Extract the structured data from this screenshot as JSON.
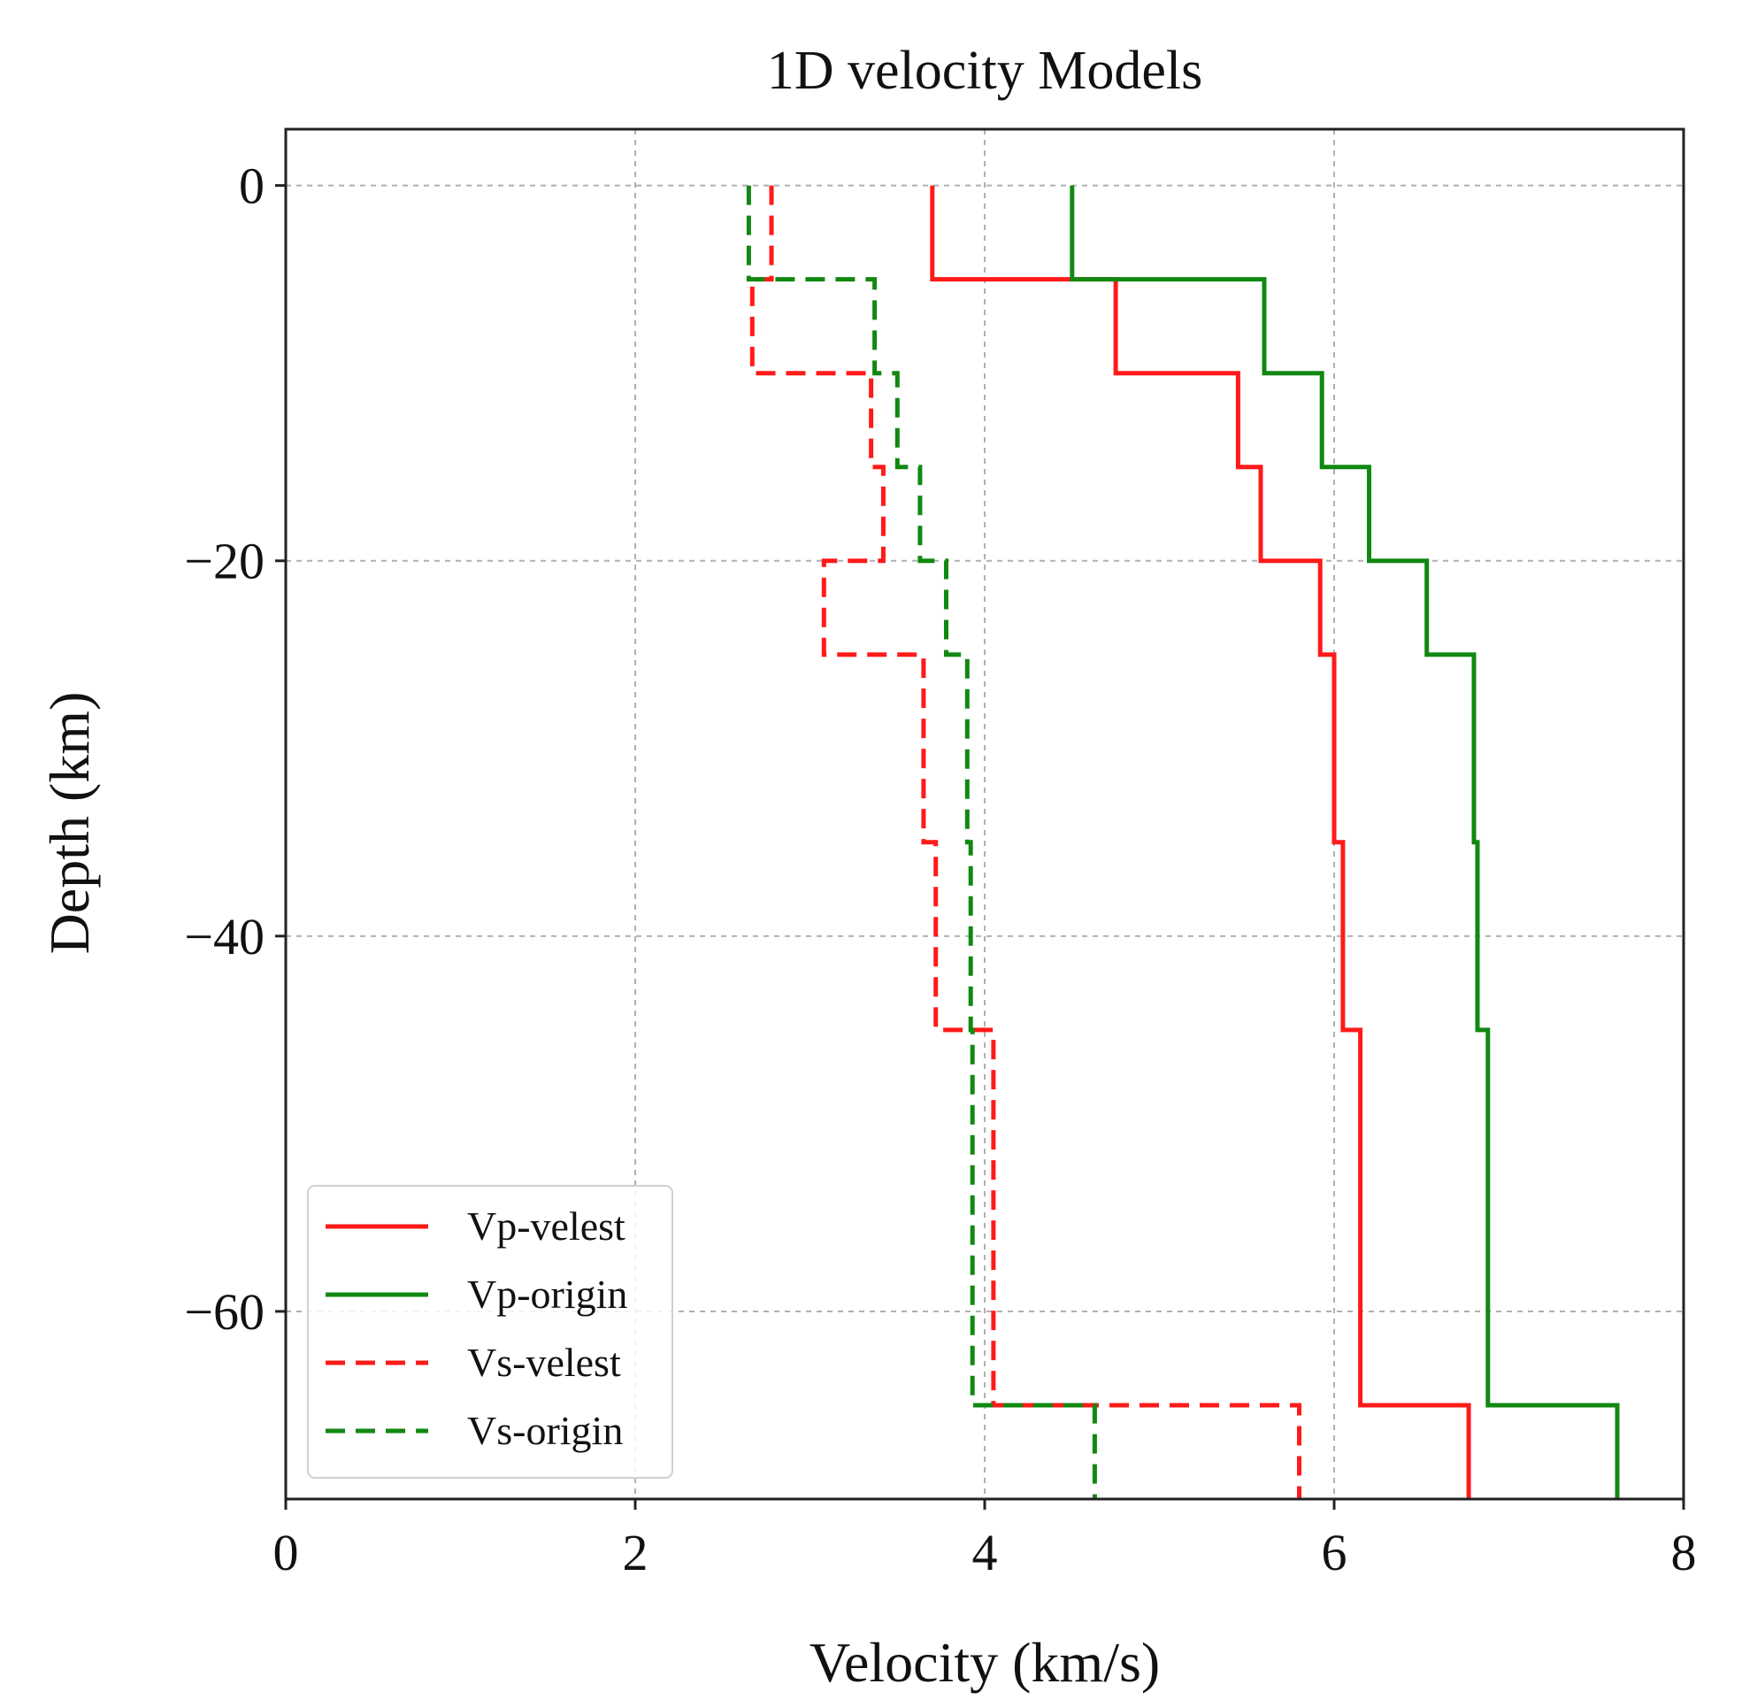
{
  "chart_data": {
    "type": "line",
    "title": "1D velocity Models",
    "xlabel": "Velocity (km/s)",
    "ylabel": "Depth (km)",
    "xlim": [
      0,
      8
    ],
    "ylim": [
      -70,
      3
    ],
    "xticks": [
      0,
      2,
      4,
      6,
      8
    ],
    "xtick_labels": [
      "0",
      "2",
      "4",
      "6",
      "8"
    ],
    "yticks": [
      0,
      -20,
      -40,
      -60
    ],
    "ytick_labels": [
      "0",
      "−20",
      "−40",
      "−60"
    ],
    "grid": true,
    "legend_position": "lower-left",
    "series": [
      {
        "name": "Vp-velest",
        "color": "#ff1a1a",
        "style": "solid",
        "x": [
          3.7,
          3.7,
          4.75,
          4.75,
          5.45,
          5.45,
          5.58,
          5.58,
          5.92,
          5.92,
          6.0,
          6.0,
          6.05,
          6.05,
          6.15,
          6.15,
          6.77,
          6.77
        ],
        "y": [
          0,
          -5,
          -5,
          -10,
          -10,
          -15,
          -15,
          -20,
          -20,
          -25,
          -25,
          -35,
          -35,
          -45,
          -45,
          -65,
          -65,
          -70
        ]
      },
      {
        "name": "Vp-origin",
        "color": "#118811",
        "style": "solid",
        "x": [
          4.5,
          4.5,
          5.6,
          5.6,
          5.93,
          5.93,
          6.2,
          6.2,
          6.53,
          6.53,
          6.8,
          6.8,
          6.82,
          6.82,
          6.88,
          6.88,
          7.62,
          7.62
        ],
        "y": [
          0,
          -5,
          -5,
          -10,
          -10,
          -15,
          -15,
          -20,
          -20,
          -25,
          -25,
          -35,
          -35,
          -45,
          -45,
          -65,
          -65,
          -70
        ]
      },
      {
        "name": "Vs-velest",
        "color": "#ff1a1a",
        "style": "dashed",
        "x": [
          2.78,
          2.78,
          2.67,
          2.67,
          3.35,
          3.35,
          3.42,
          3.42,
          3.08,
          3.08,
          3.65,
          3.65,
          3.72,
          3.72,
          4.05,
          4.05,
          5.8,
          5.8
        ],
        "y": [
          0,
          -5,
          -5,
          -10,
          -10,
          -15,
          -15,
          -20,
          -20,
          -25,
          -25,
          -35,
          -35,
          -45,
          -45,
          -65,
          -65,
          -70
        ]
      },
      {
        "name": "Vs-origin",
        "color": "#118811",
        "style": "dashed",
        "x": [
          2.65,
          2.65,
          3.37,
          3.37,
          3.5,
          3.5,
          3.63,
          3.63,
          3.78,
          3.78,
          3.9,
          3.9,
          3.92,
          3.92,
          3.93,
          3.93,
          4.63,
          4.63
        ],
        "y": [
          0,
          -5,
          -5,
          -10,
          -10,
          -15,
          -15,
          -20,
          -20,
          -25,
          -25,
          -35,
          -35,
          -45,
          -45,
          -65,
          -65,
          -70
        ]
      }
    ]
  }
}
